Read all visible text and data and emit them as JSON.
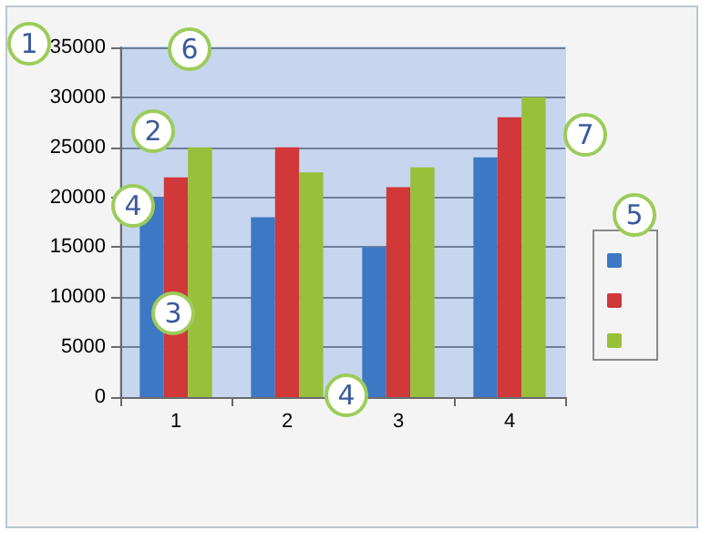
{
  "chart_data": {
    "type": "bar",
    "categories": [
      "1",
      "2",
      "3",
      "4"
    ],
    "series": [
      {
        "color": "#3d78c4",
        "values": [
          20000,
          18000,
          15000,
          24000
        ]
      },
      {
        "color": "#d0383a",
        "values": [
          22000,
          25000,
          21000,
          28000
        ]
      },
      {
        "color": "#98c03a",
        "values": [
          25000,
          22500,
          23000,
          30000
        ]
      }
    ],
    "ylim": [
      0,
      35000
    ],
    "yticks": [
      0,
      5000,
      10000,
      15000,
      20000,
      25000,
      30000,
      35000
    ],
    "grid": "y",
    "annotations": [
      "1",
      "2",
      "3",
      "4",
      "4",
      "5",
      "6",
      "7"
    ]
  }
}
